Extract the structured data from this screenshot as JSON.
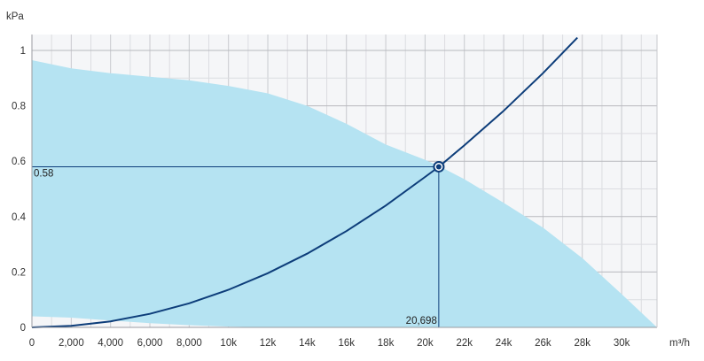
{
  "chart_data": {
    "type": "line",
    "title": "",
    "xlabel": "m³/h",
    "ylabel": "kPa",
    "xlim": [
      0,
      31800
    ],
    "ylim": [
      0,
      1.05
    ],
    "x_ticks": [
      0,
      2000,
      4000,
      6000,
      8000,
      10000,
      12000,
      14000,
      16000,
      18000,
      20000,
      22000,
      24000,
      26000,
      28000,
      30000
    ],
    "x_tick_labels": [
      "0",
      "2,000",
      "4,000",
      "6,000",
      "8,000",
      "10k",
      "12k",
      "14k",
      "16k",
      "18k",
      "20k",
      "22k",
      "24k",
      "26k",
      "28k",
      "30k"
    ],
    "y_ticks": [
      0,
      0.2,
      0.4,
      0.6,
      0.8,
      1
    ],
    "y_tick_labels": [
      "0",
      "0.2",
      "0.4",
      "0.6",
      "0.8",
      "1"
    ],
    "grid": true,
    "legend": "none",
    "series": [
      {
        "kind": "area",
        "color": "#b5e3f2",
        "upper": {
          "x": [
            0,
            2000,
            4000,
            6000,
            8000,
            10000,
            12000,
            14000,
            16000,
            18000,
            20000,
            20698,
            22000,
            24000,
            26000,
            28000,
            30000,
            31800
          ],
          "y": [
            0.965,
            0.935,
            0.918,
            0.905,
            0.892,
            0.872,
            0.845,
            0.8,
            0.735,
            0.66,
            0.605,
            0.583,
            0.535,
            0.45,
            0.36,
            0.25,
            0.12,
            0.0
          ]
        },
        "lower": {
          "x": [
            0,
            2000,
            4000,
            6000,
            8000,
            10000,
            12000,
            14000,
            16000,
            18000,
            20000,
            22000,
            24000,
            26000,
            28000,
            30000,
            31800
          ],
          "y": [
            0.04,
            0.035,
            0.025,
            0.015,
            0.008,
            0.003,
            0.0,
            0.0,
            0.0,
            0.0,
            0.0,
            0.0,
            0.0,
            0.0,
            0.0,
            0.0,
            0.0
          ]
        }
      },
      {
        "kind": "line",
        "color": "#0d3d7a",
        "x": [
          0,
          2000,
          4000,
          6000,
          8000,
          10000,
          12000,
          14000,
          16000,
          18000,
          20000,
          20698,
          22000,
          24000,
          26000,
          27750
        ],
        "y": [
          0,
          0.0054,
          0.0217,
          0.0489,
          0.0869,
          0.1358,
          0.1955,
          0.2661,
          0.3476,
          0.44,
          0.5432,
          0.58,
          0.6572,
          0.7822,
          0.918,
          1.046
        ]
      }
    ],
    "operating_point": {
      "x": 20698,
      "y": 0.58,
      "x_label": "20,698",
      "y_label": "0.58",
      "color": "#0d3d7a"
    }
  }
}
